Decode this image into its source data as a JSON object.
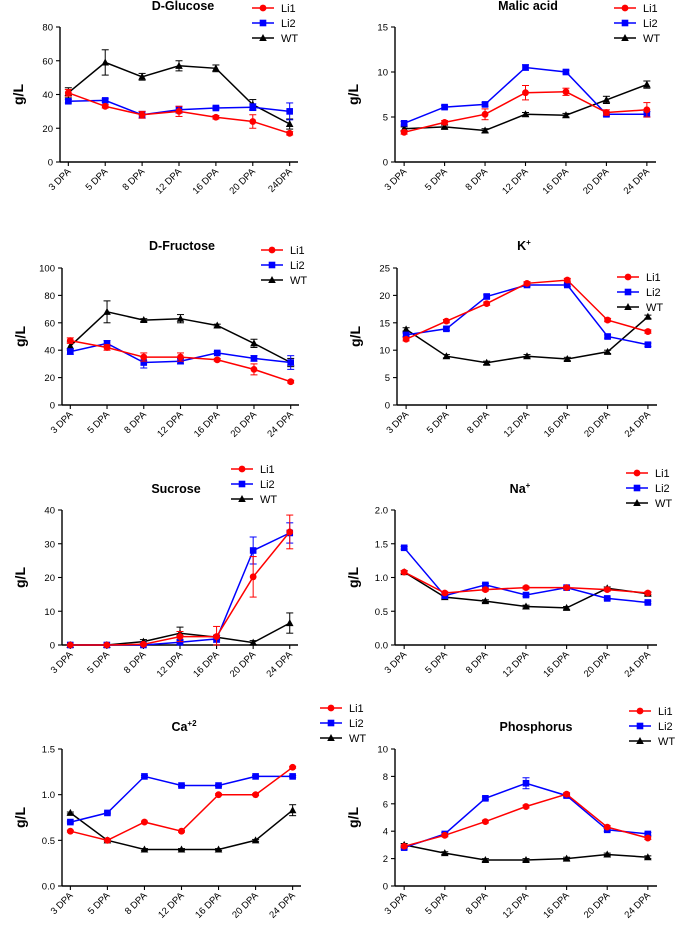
{
  "figure": {
    "series_names": [
      "Li1",
      "Li2",
      "WT"
    ],
    "colors": {
      "Li1": "#ff0000",
      "Li2": "#0000ff",
      "WT": "#000000"
    },
    "markers": {
      "Li1": "circle",
      "Li2": "square",
      "WT": "triangle"
    }
  },
  "chart_data": [
    {
      "type": "line",
      "title": "D-Glucose",
      "title_sup": "",
      "ylabel": "g/L",
      "categories": [
        "3 DPA",
        "5 DPA",
        "8 DPA",
        "12 DPA",
        "16 DPA",
        "20 DPA",
        "24DPA"
      ],
      "ylim": [
        0,
        80
      ],
      "yticks": [
        0,
        20,
        40,
        60,
        80
      ],
      "ytick_labels": [
        "0",
        "20",
        "40",
        "60",
        "80"
      ],
      "legend_position": "top-right",
      "series": [
        {
          "name": "Li1",
          "values": [
            41,
            33,
            28,
            30,
            26.5,
            24,
            17
          ],
          "errors": [
            2,
            1,
            2,
            3,
            1,
            4,
            1
          ]
        },
        {
          "name": "Li2",
          "values": [
            36,
            36.5,
            28,
            31,
            32,
            32.5,
            30
          ],
          "errors": [
            1,
            1,
            2,
            2,
            1,
            2,
            5
          ]
        },
        {
          "name": "WT",
          "values": [
            41,
            59,
            50.5,
            57,
            55.5,
            34,
            22.5
          ],
          "errors": [
            3,
            7.5,
            2,
            3,
            2,
            3,
            3
          ]
        }
      ]
    },
    {
      "type": "line",
      "title": "Malic acid",
      "title_sup": "",
      "ylabel": "g/L",
      "categories": [
        "3 DPA",
        "5 DPA",
        "8 DPA",
        "12 DPA",
        "16 DPA",
        "20 DPA",
        "24 DPA"
      ],
      "ylim": [
        0,
        15
      ],
      "yticks": [
        0,
        5,
        10,
        15
      ],
      "ytick_labels": [
        "0",
        "5",
        "10",
        "15"
      ],
      "legend_position": "top-right",
      "series": [
        {
          "name": "Li1",
          "values": [
            3.3,
            4.4,
            5.3,
            7.7,
            7.8,
            5.5,
            5.8
          ],
          "errors": [
            0.2,
            0.2,
            0.6,
            0.8,
            0.4,
            0.3,
            0.8
          ]
        },
        {
          "name": "Li2",
          "values": [
            4.3,
            6.1,
            6.4,
            10.5,
            10,
            5.3,
            5.3
          ],
          "errors": [
            0.2,
            0.2,
            0.2,
            0.3,
            0.2,
            0.2,
            0.3
          ]
        },
        {
          "name": "WT",
          "values": [
            3.7,
            3.9,
            3.5,
            5.3,
            5.2,
            6.9,
            8.6
          ],
          "errors": [
            0.2,
            0.2,
            0.2,
            0.2,
            0.2,
            0.4,
            0.4
          ]
        }
      ]
    },
    {
      "type": "line",
      "title": "D-Fructose",
      "title_sup": "",
      "ylabel": "g/L",
      "categories": [
        "3 DPA",
        "5 DPA",
        "8 DPA",
        "12 DPA",
        "16 DPA",
        "20 DPA",
        "24 DPA"
      ],
      "ylim": [
        0,
        100
      ],
      "yticks": [
        0,
        20,
        40,
        60,
        80,
        100
      ],
      "ytick_labels": [
        "0",
        "20",
        "40",
        "60",
        "80",
        "100"
      ],
      "legend_position": "top-right",
      "series": [
        {
          "name": "Li1",
          "values": [
            47,
            42,
            35,
            35,
            33,
            26,
            17
          ],
          "errors": [
            2,
            2,
            3,
            3,
            1,
            4,
            1
          ]
        },
        {
          "name": "Li2",
          "values": [
            39,
            45,
            31,
            32,
            38,
            34,
            31
          ],
          "errors": [
            2,
            2,
            4,
            2,
            1,
            2,
            5
          ]
        },
        {
          "name": "WT",
          "values": [
            43,
            68,
            62,
            63,
            58,
            45,
            31
          ],
          "errors": [
            3,
            8,
            1,
            3,
            1,
            3,
            3
          ]
        }
      ]
    },
    {
      "type": "line",
      "title": "K",
      "title_sup": "+",
      "ylabel": "g/L",
      "categories": [
        "3 DPA",
        "5 DPA",
        "8 DPA",
        "12 DPA",
        "16 DPA",
        "20 DPA",
        "24 DPA"
      ],
      "ylim": [
        0,
        25
      ],
      "yticks": [
        0,
        5,
        10,
        15,
        20,
        25
      ],
      "ytick_labels": [
        "0",
        "5",
        "10",
        "15",
        "20",
        "25"
      ],
      "legend_position": "right",
      "series": [
        {
          "name": "Li1",
          "values": [
            12,
            15.3,
            18.5,
            22.2,
            22.8,
            15.5,
            13.4
          ],
          "errors": [
            0.3,
            0.3,
            0.3,
            0.3,
            0.3,
            0.3,
            0.3
          ]
        },
        {
          "name": "Li2",
          "values": [
            12.8,
            13.9,
            19.8,
            21.9,
            21.9,
            12.5,
            11
          ],
          "errors": [
            0.3,
            0.3,
            0.3,
            0.3,
            0.3,
            0.3,
            0.3
          ]
        },
        {
          "name": "WT",
          "values": [
            13.8,
            8.9,
            7.7,
            8.9,
            8.4,
            9.7,
            16.1
          ],
          "errors": [
            0.3,
            0.3,
            0.3,
            0.3,
            0.3,
            0.3,
            0.3
          ]
        }
      ]
    },
    {
      "type": "line",
      "title": "Sucrose",
      "title_sup": "",
      "ylabel": "g/L",
      "categories": [
        "3 DPA",
        "5 DPA",
        "8 DPA",
        "12 DPA",
        "16 DPA",
        "20 DPA",
        "24 DPA"
      ],
      "ylim": [
        0,
        40
      ],
      "yticks": [
        0,
        10,
        20,
        30,
        40
      ],
      "ytick_labels": [
        "0",
        "10",
        "20",
        "30",
        "40"
      ],
      "legend_position": "top-right",
      "series": [
        {
          "name": "Li1",
          "values": [
            0,
            0,
            0.2,
            2.5,
            2.5,
            20.2,
            33.5
          ],
          "errors": [
            0.1,
            0.1,
            0.3,
            1.5,
            3,
            6,
            5
          ]
        },
        {
          "name": "Li2",
          "values": [
            0,
            0,
            0,
            0.8,
            1.8,
            28,
            33.2
          ],
          "errors": [
            0.1,
            0.1,
            0.2,
            0.5,
            1,
            4,
            3
          ]
        },
        {
          "name": "WT",
          "values": [
            0,
            0,
            1,
            3.5,
            2.3,
            0.7,
            6.5
          ],
          "errors": [
            0.1,
            0.1,
            0.6,
            1.8,
            0.6,
            0.6,
            3
          ]
        }
      ]
    },
    {
      "type": "line",
      "title": "Na",
      "title_sup": "+",
      "ylabel": "g/L",
      "categories": [
        "3 DPA",
        "5 DPA",
        "8 DPA",
        "12 DPA",
        "16 DPA",
        "20 DPA",
        "24 DPA"
      ],
      "ylim": [
        0,
        2.0
      ],
      "yticks": [
        0,
        0.5,
        1.0,
        1.5,
        2.0
      ],
      "ytick_labels": [
        "0.0",
        "0.5",
        "1.0",
        "1.5",
        "2.0"
      ],
      "legend_position": "top-right",
      "series": [
        {
          "name": "Li1",
          "values": [
            1.08,
            0.77,
            0.82,
            0.85,
            0.85,
            0.82,
            0.77
          ],
          "errors": [
            0.02,
            0.02,
            0.02,
            0.02,
            0.02,
            0.02,
            0.02
          ]
        },
        {
          "name": "Li2",
          "values": [
            1.44,
            0.73,
            0.89,
            0.74,
            0.85,
            0.69,
            0.63
          ],
          "errors": [
            0.02,
            0.02,
            0.02,
            0.02,
            0.02,
            0.02,
            0.02
          ]
        },
        {
          "name": "WT",
          "values": [
            1.08,
            0.71,
            0.65,
            0.57,
            0.55,
            0.84,
            0.76
          ],
          "errors": [
            0.02,
            0.02,
            0.02,
            0.02,
            0.02,
            0.02,
            0.02
          ]
        }
      ]
    },
    {
      "type": "line",
      "title": "Ca",
      "title_sup": "+2",
      "ylabel": "g/L",
      "categories": [
        "3 DPA",
        "5 DPA",
        "8 DPA",
        "12 DPA",
        "16 DPA",
        "20 DPA",
        "24 DPA"
      ],
      "ylim": [
        0,
        1.5
      ],
      "yticks": [
        0,
        0.5,
        1.0,
        1.5
      ],
      "ytick_labels": [
        "0.0",
        "0.5",
        "1.0",
        "1.5"
      ],
      "legend_position": "top-right",
      "series": [
        {
          "name": "Li1",
          "values": [
            0.6,
            0.5,
            0.7,
            0.6,
            1.0,
            1.0,
            1.3
          ],
          "errors": [
            0.01,
            0.01,
            0.01,
            0.01,
            0.01,
            0.01,
            0.01
          ]
        },
        {
          "name": "Li2",
          "values": [
            0.7,
            0.8,
            1.2,
            1.1,
            1.1,
            1.2,
            1.2
          ],
          "errors": [
            0.01,
            0.01,
            0.01,
            0.01,
            0.01,
            0.01,
            0.01
          ]
        },
        {
          "name": "WT",
          "values": [
            0.8,
            0.5,
            0.4,
            0.4,
            0.4,
            0.5,
            0.83
          ],
          "errors": [
            0.01,
            0.01,
            0.01,
            0.01,
            0.01,
            0.01,
            0.06
          ]
        }
      ]
    },
    {
      "type": "line",
      "title": "Phosphorus",
      "title_sup": "",
      "ylabel": "g/L",
      "categories": [
        "3 DPA",
        "5 DPA",
        "8 DPA",
        "12 DPA",
        "16 DPA",
        "20 DPA",
        "24 DPA"
      ],
      "ylim": [
        0,
        10
      ],
      "yticks": [
        0,
        2,
        4,
        6,
        8,
        10
      ],
      "ytick_labels": [
        "0",
        "2",
        "4",
        "6",
        "8",
        "10"
      ],
      "legend_position": "top-right",
      "series": [
        {
          "name": "Li1",
          "values": [
            2.9,
            3.7,
            4.7,
            5.8,
            6.7,
            4.3,
            3.5
          ],
          "errors": [
            0.1,
            0.1,
            0.1,
            0.1,
            0.1,
            0.1,
            0.1
          ]
        },
        {
          "name": "Li2",
          "values": [
            2.8,
            3.8,
            6.4,
            7.5,
            6.6,
            4.1,
            3.8
          ],
          "errors": [
            0.1,
            0.1,
            0.1,
            0.4,
            0.1,
            0.1,
            0.1
          ]
        },
        {
          "name": "WT",
          "values": [
            3.0,
            2.4,
            1.9,
            1.9,
            2.0,
            2.3,
            2.1
          ],
          "errors": [
            0.1,
            0.1,
            0.1,
            0.1,
            0.1,
            0.1,
            0.1
          ]
        }
      ]
    }
  ]
}
